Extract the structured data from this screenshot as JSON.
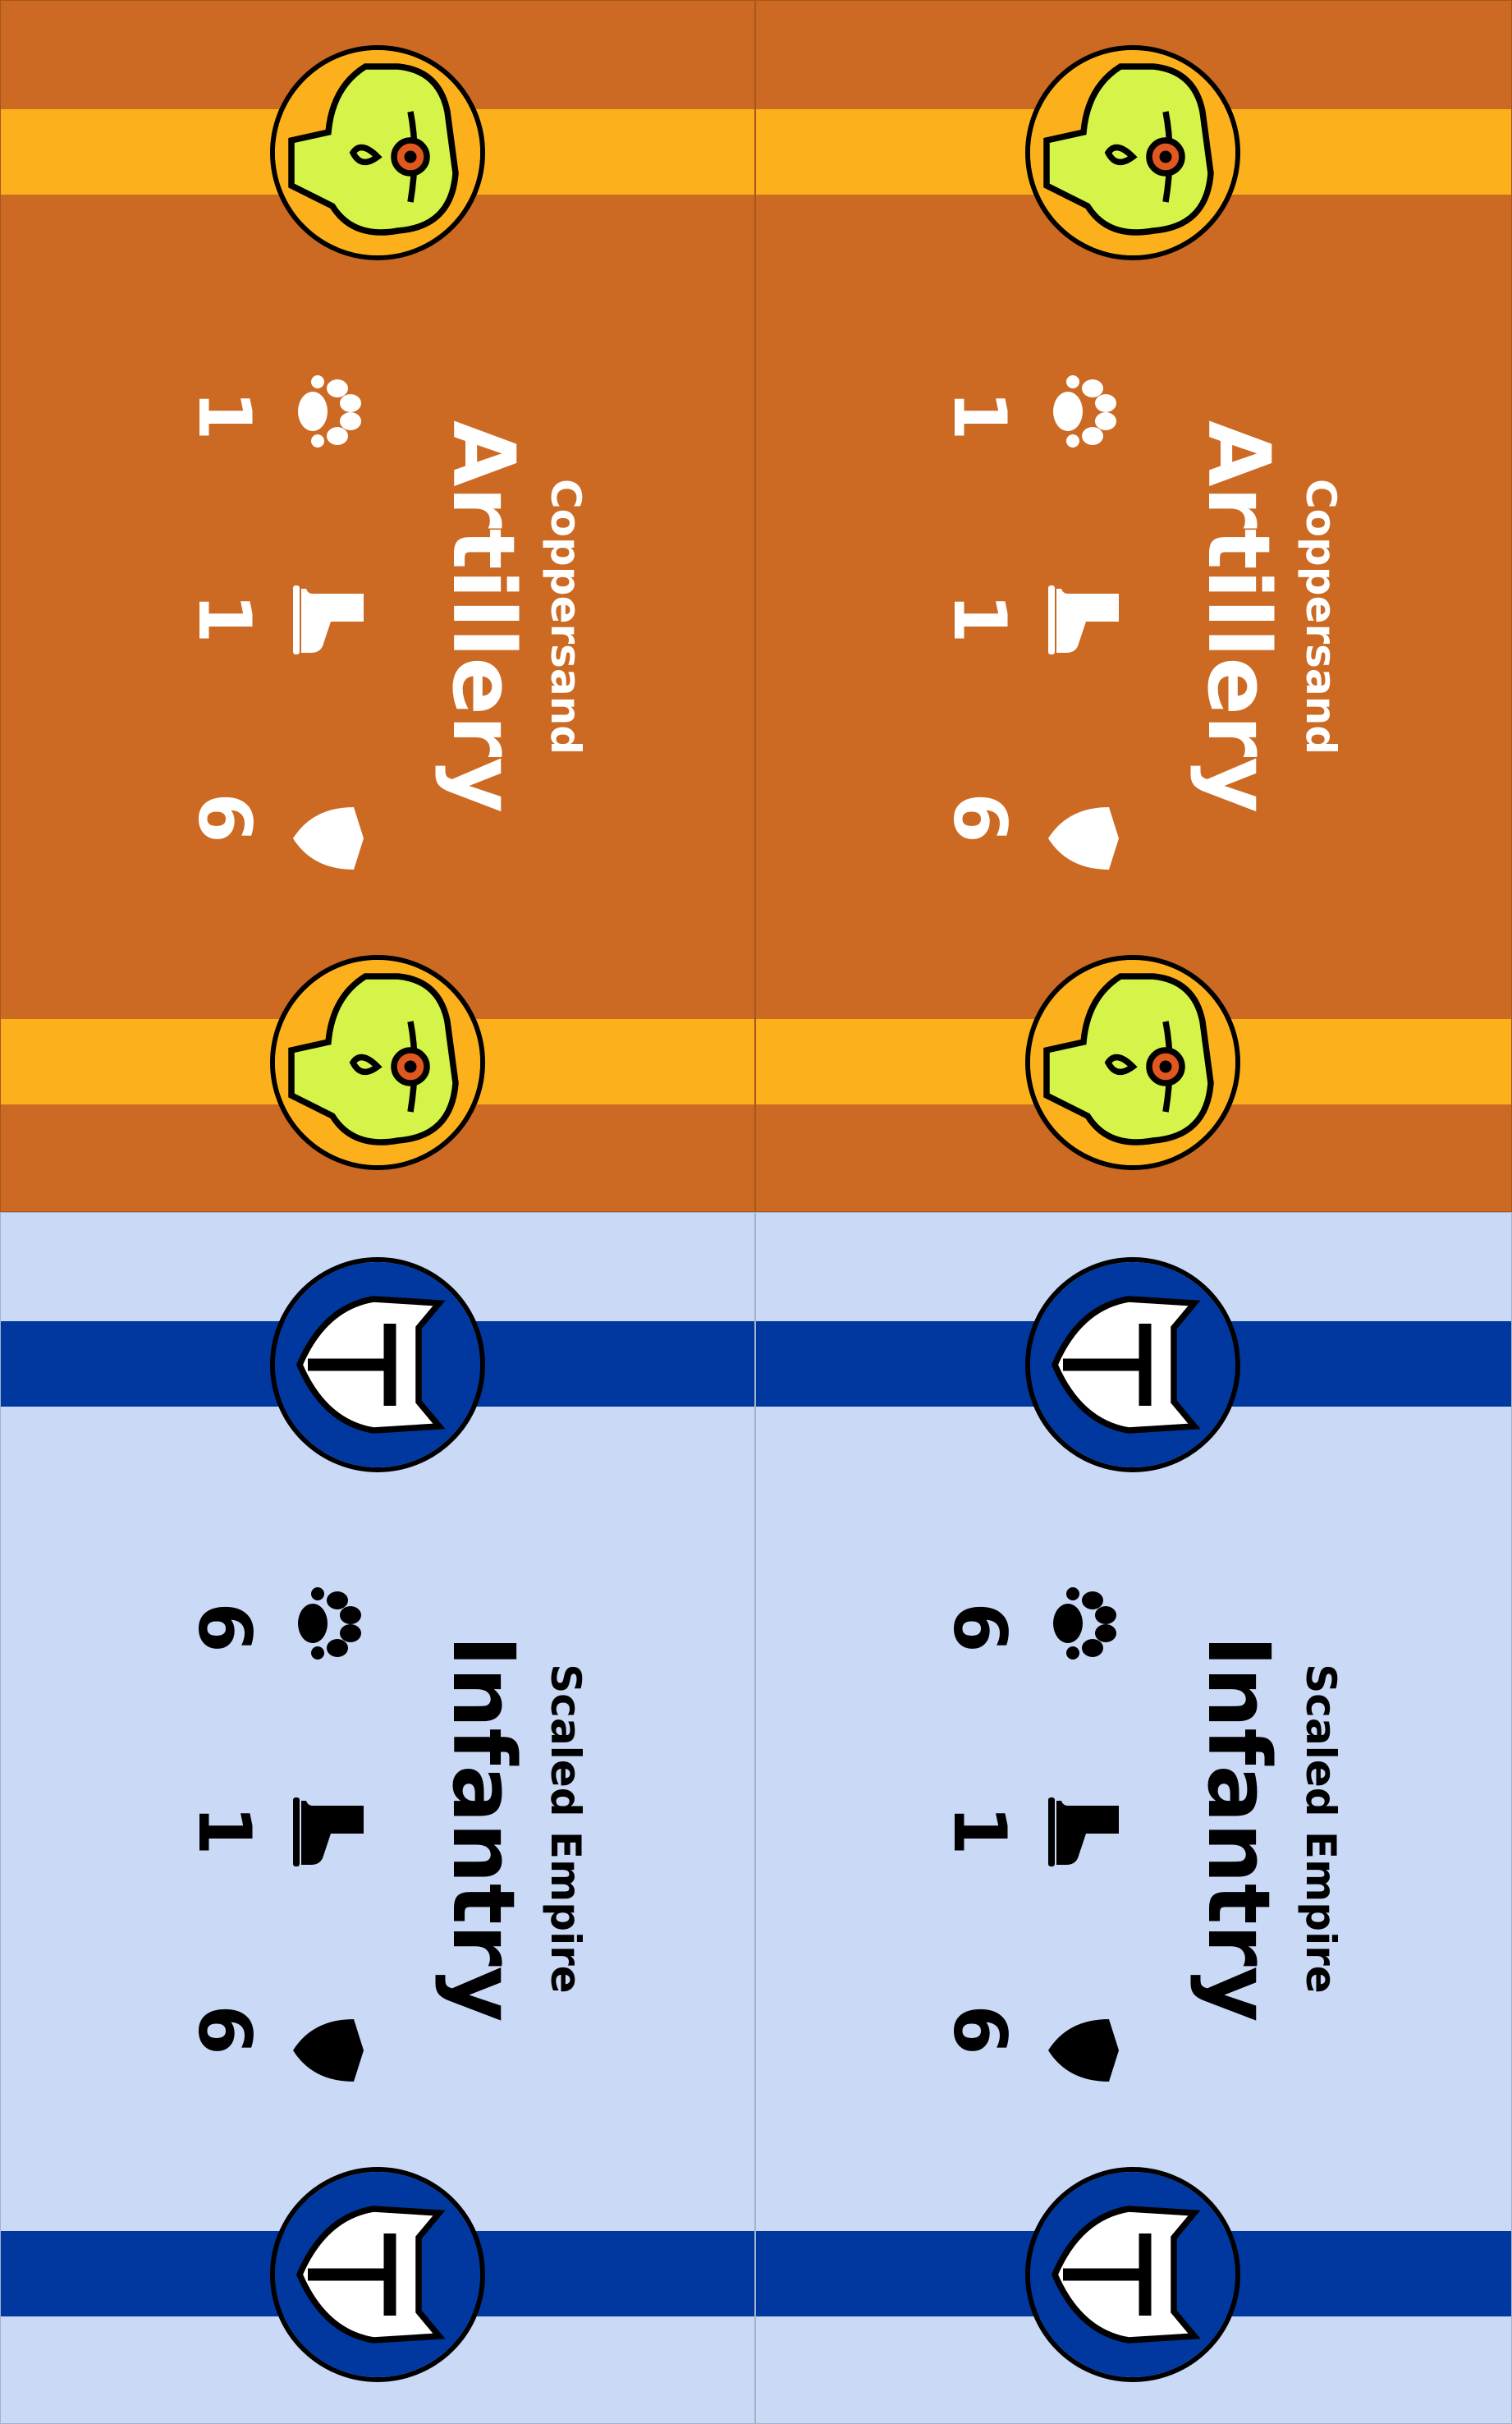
{
  "cards": [
    {
      "faction": "Coppersand",
      "unit": "Artillery",
      "stats": {
        "attack": "1",
        "move": "1",
        "defense": "6"
      },
      "stat_icons": [
        "paw-icon",
        "boot-icon",
        "shield-icon"
      ],
      "emblem_icon": "goblin-goggles-emblem-icon",
      "colors": {
        "background": "#cc6a23",
        "band": "#fcb01c",
        "emblem_bg": "#fcb01c",
        "text": "#ffffff"
      }
    },
    {
      "faction": "Coppersand",
      "unit": "Artillery",
      "stats": {
        "attack": "1",
        "move": "1",
        "defense": "6"
      },
      "stat_icons": [
        "paw-icon",
        "boot-icon",
        "shield-icon"
      ],
      "emblem_icon": "goblin-goggles-emblem-icon",
      "colors": {
        "background": "#cc6a23",
        "band": "#fcb01c",
        "emblem_bg": "#fcb01c",
        "text": "#ffffff"
      }
    },
    {
      "faction": "Scaled Empire",
      "unit": "Infantry",
      "stats": {
        "attack": "6",
        "move": "1",
        "defense": "6"
      },
      "stat_icons": [
        "paw-icon",
        "boot-icon",
        "shield-icon"
      ],
      "emblem_icon": "knight-helmet-emblem-icon",
      "colors": {
        "background": "#c9d9f6",
        "band": "#01389f",
        "emblem_bg": "#01389f",
        "text": "#000000"
      }
    },
    {
      "faction": "Scaled Empire",
      "unit": "Infantry",
      "stats": {
        "attack": "6",
        "move": "1",
        "defense": "6"
      },
      "stat_icons": [
        "paw-icon",
        "boot-icon",
        "shield-icon"
      ],
      "emblem_icon": "knight-helmet-emblem-icon",
      "colors": {
        "background": "#c9d9f6",
        "band": "#01389f",
        "emblem_bg": "#01389f",
        "text": "#000000"
      }
    }
  ]
}
